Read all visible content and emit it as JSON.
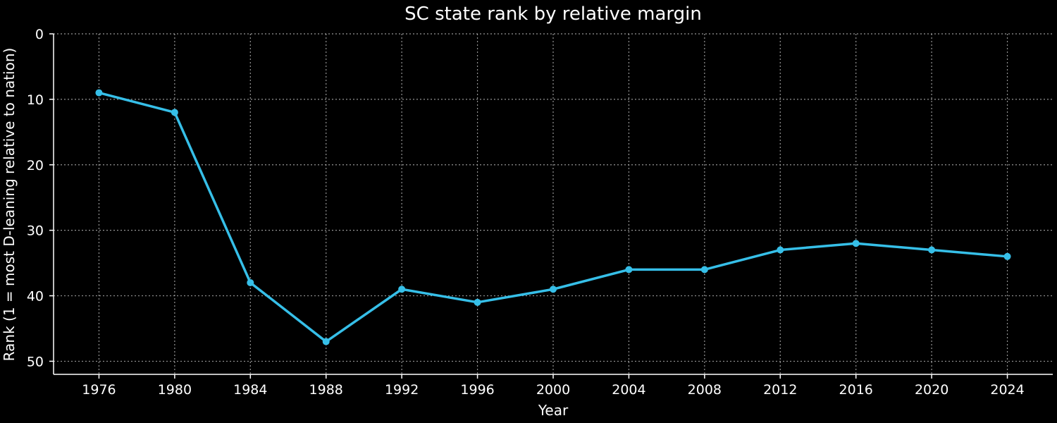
{
  "chart_data": {
    "type": "line",
    "title": "SC state rank by relative margin",
    "xlabel": "Year",
    "ylabel": "Rank (1 = most D-leaning relative to nation)",
    "x": [
      1976,
      1980,
      1984,
      1988,
      1992,
      1996,
      2000,
      2004,
      2008,
      2012,
      2016,
      2020,
      2024
    ],
    "series": [
      {
        "values": [
          9,
          12,
          38,
          47,
          39,
          41,
          39,
          36,
          36,
          33,
          32,
          33,
          34
        ],
        "color": "#36bfe8"
      }
    ],
    "xlim": [
      1973.6,
      2026.4
    ],
    "ylim": [
      0,
      52
    ],
    "y_inverted": true,
    "y_ticks": [
      0,
      10,
      20,
      30,
      40,
      50
    ],
    "x_ticks": [
      1976,
      1980,
      1984,
      1988,
      1992,
      1996,
      2000,
      2004,
      2008,
      2012,
      2016,
      2020,
      2024
    ],
    "grid": true,
    "background": "#000000"
  }
}
